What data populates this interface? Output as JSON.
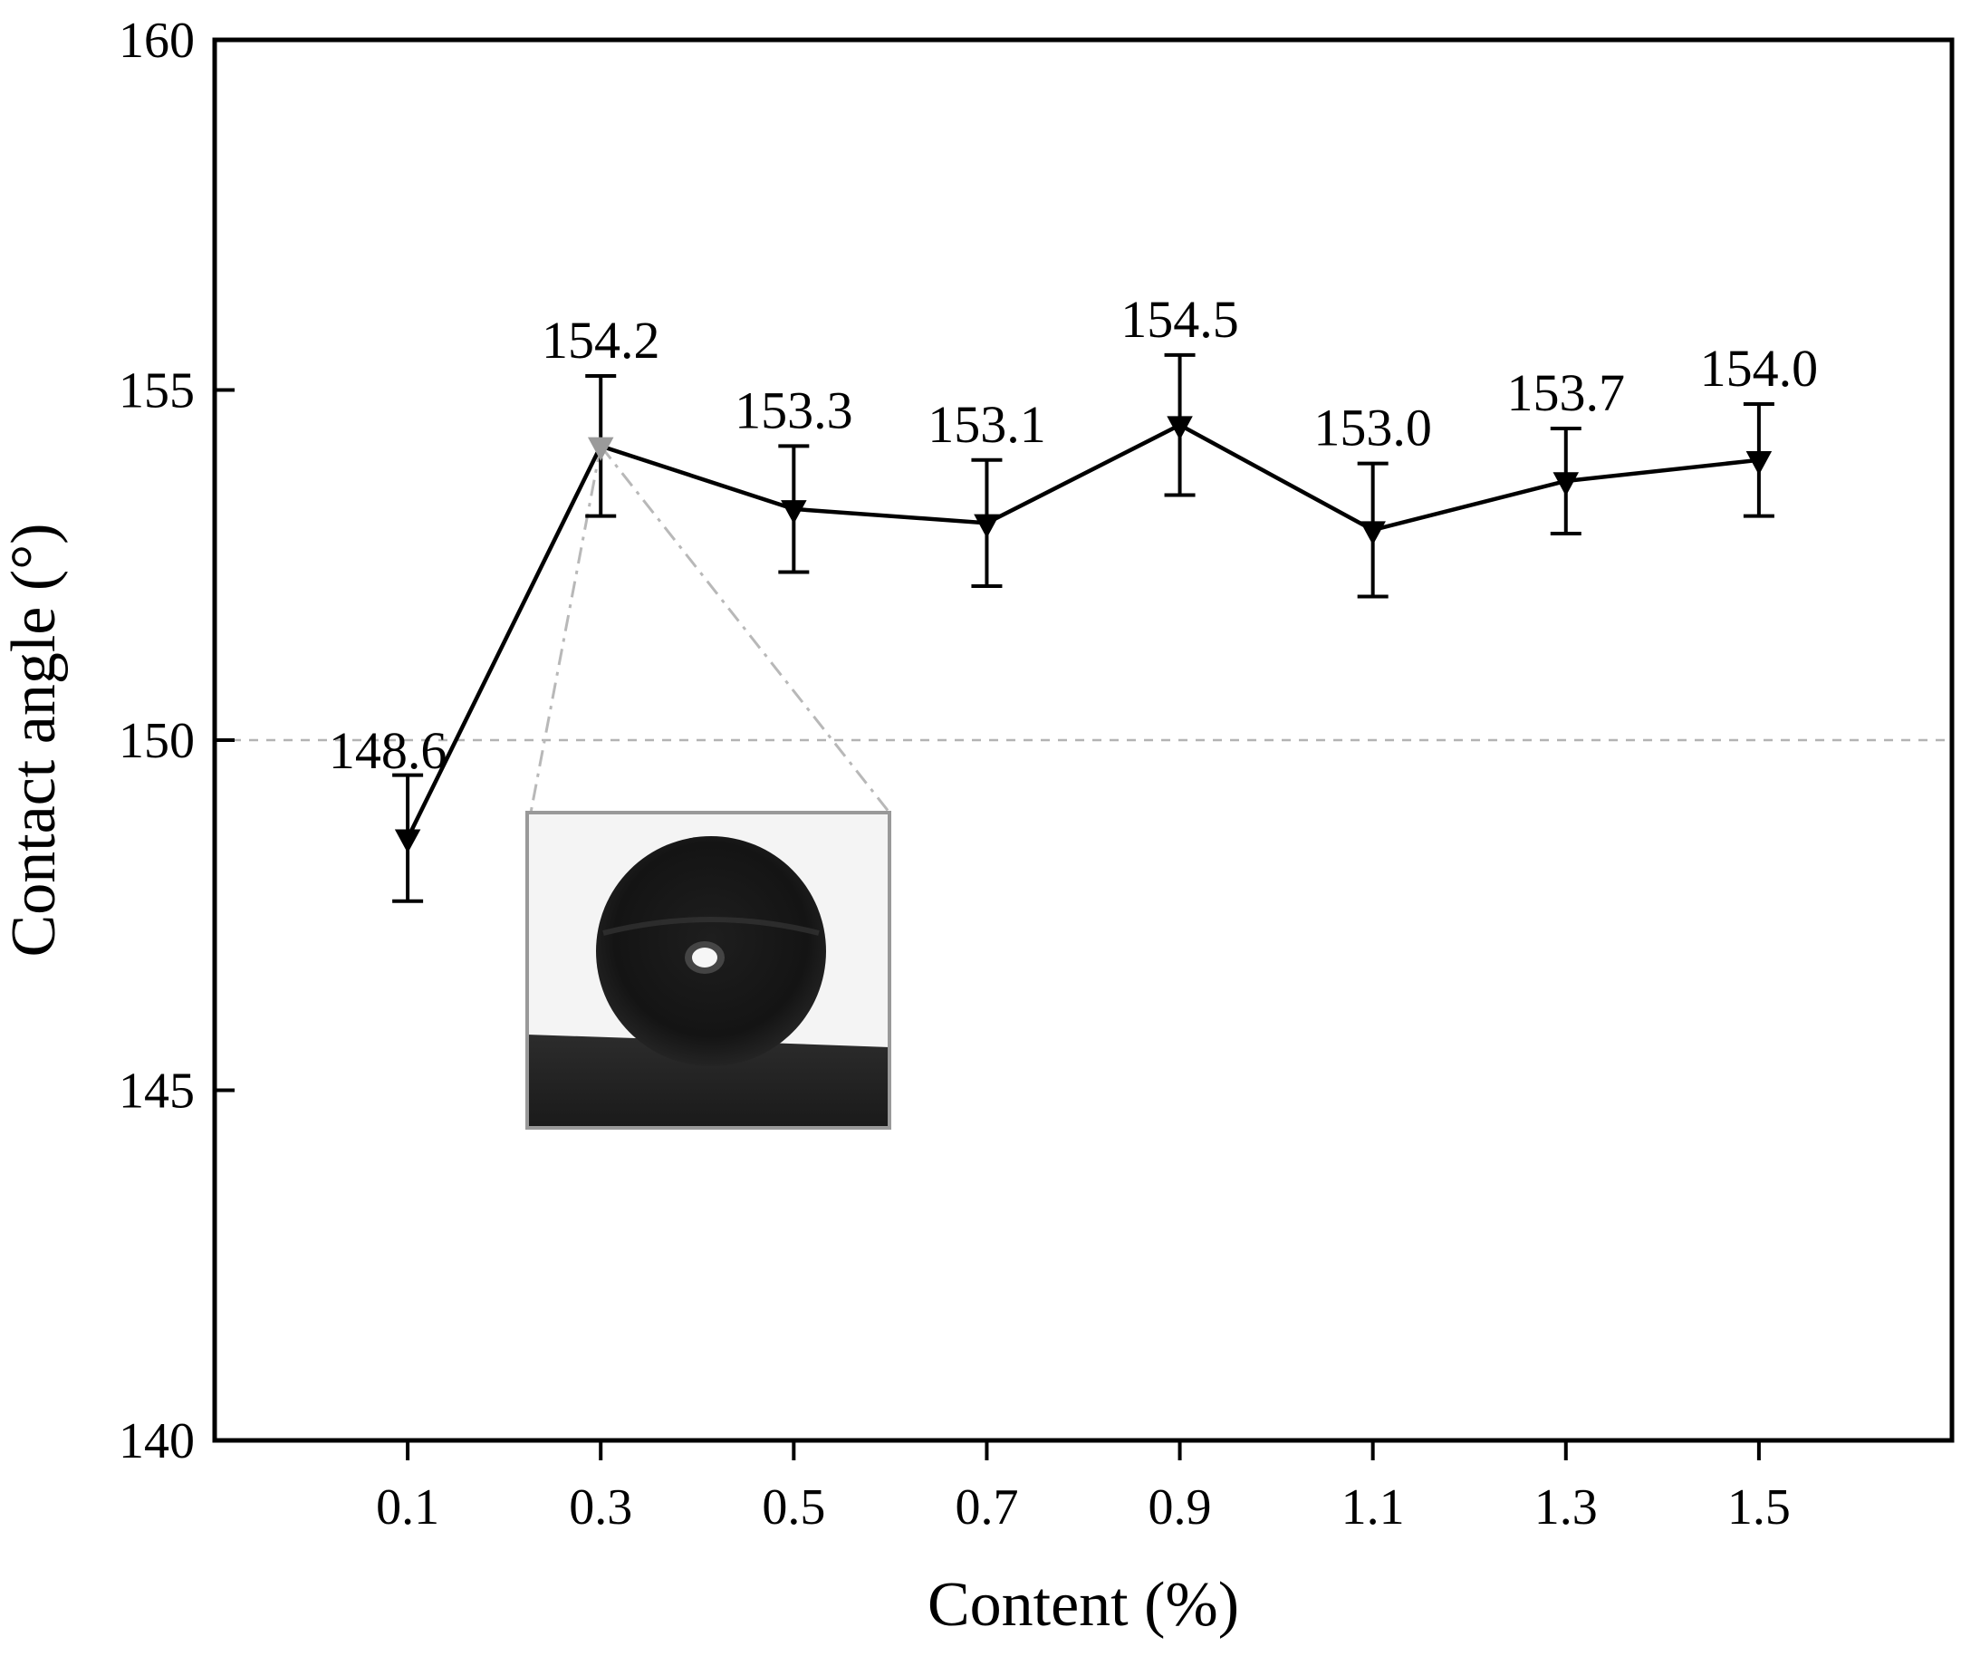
{
  "chart_data": {
    "type": "line",
    "xlabel": "Content (%)",
    "ylabel": "Contact angle (°)",
    "x": [
      0.1,
      0.3,
      0.5,
      0.7,
      0.9,
      1.1,
      1.3,
      1.5
    ],
    "x_tick_labels": [
      "0.1",
      "0.3",
      "0.5",
      "0.7",
      "0.9",
      "1.1",
      "1.3",
      "1.5"
    ],
    "y_ticks": [
      140,
      145,
      150,
      155,
      160
    ],
    "y_tick_labels": [
      "140",
      "145",
      "150",
      "155",
      "160"
    ],
    "ylim": [
      140,
      160
    ],
    "xlim": [
      -0.1,
      1.7
    ],
    "series": [
      {
        "values": [
          148.6,
          154.2,
          153.3,
          153.1,
          154.5,
          153.0,
          153.7,
          154.0
        ],
        "error": [
          0.9,
          1.0,
          0.9,
          0.9,
          1.0,
          0.95,
          0.75,
          0.8
        ],
        "value_labels": [
          "148.6",
          "154.2",
          "153.3",
          "153.1",
          "154.5",
          "153.0",
          "153.7",
          "154.0"
        ],
        "marker": "down-triangle",
        "color": "#000000"
      }
    ],
    "reference_line": {
      "y": 150,
      "style": "dashed",
      "color": "#b3b3b3"
    },
    "grid": false,
    "inset": {
      "description_shown": "water droplet image",
      "linked_point_x": 0.3,
      "frame_color": "#999999"
    }
  }
}
